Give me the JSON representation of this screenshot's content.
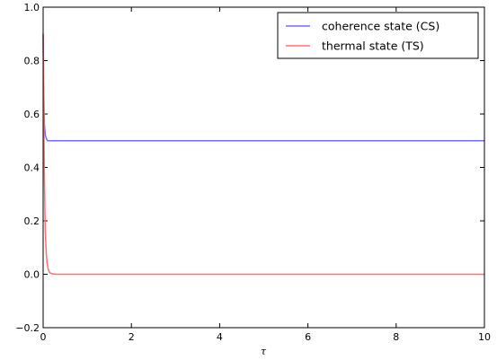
{
  "chart_data": {
    "type": "line",
    "title": "",
    "xlabel": "τ",
    "ylabel": "",
    "xlim": [
      0,
      10
    ],
    "ylim": [
      -0.2,
      1.0
    ],
    "xticks": [
      0,
      2,
      4,
      6,
      8,
      10
    ],
    "yticks": [
      -0.2,
      0.0,
      0.2,
      0.4,
      0.6,
      0.8,
      1.0
    ],
    "xtick_labels": [
      "0",
      "2",
      "4",
      "6",
      "8",
      "10"
    ],
    "ytick_labels": [
      "−0.2",
      "0.0",
      "0.2",
      "0.4",
      "0.6",
      "0.8",
      "1.0"
    ],
    "grid": false,
    "legend_position": "top-right",
    "series": [
      {
        "name": "coherence state (CS)",
        "color": "#6f6fff",
        "x": [
          0,
          0.01,
          0.02,
          0.03,
          0.05,
          0.08,
          0.1,
          0.15,
          0.2,
          0.5,
          1,
          2,
          4,
          6,
          8,
          10
        ],
        "y": [
          0.9,
          0.72,
          0.62,
          0.56,
          0.52,
          0.505,
          0.5,
          0.5,
          0.5,
          0.5,
          0.5,
          0.5,
          0.5,
          0.5,
          0.5,
          0.5
        ]
      },
      {
        "name": "thermal state (TS)",
        "color": "#ff7070",
        "x": [
          0,
          0.01,
          0.02,
          0.03,
          0.04,
          0.05,
          0.07,
          0.09,
          0.12,
          0.15,
          0.2,
          0.3,
          0.5,
          1,
          2,
          4,
          6,
          8,
          10
        ],
        "y": [
          0.9,
          0.7,
          0.5,
          0.35,
          0.24,
          0.16,
          0.08,
          0.04,
          0.015,
          0.006,
          0.002,
          0.0,
          0.0,
          0.0,
          0.0,
          0.0,
          0.0,
          0.0,
          0.0
        ]
      }
    ]
  }
}
